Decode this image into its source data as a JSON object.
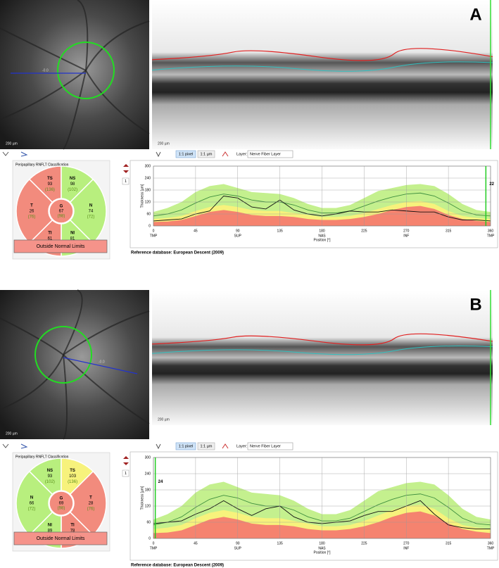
{
  "panels": [
    {
      "label": "A",
      "fundus": {
        "scale": "200 µm",
        "measure": "-0.0"
      },
      "oct": {
        "scale": "200 µm"
      },
      "toolbar": {
        "zoom_pixel": "1:1 pixel",
        "zoom_um": "1:1 µm",
        "layer_label": "Layer:",
        "layer": "Nerve Fiber Layer"
      },
      "classification": {
        "title": "Peripapillary RNFLT Classification",
        "sectors": [
          {
            "name": "TS",
            "value": 93,
            "normal": "(136)",
            "color": "#f28b7d"
          },
          {
            "name": "NS",
            "value": 98,
            "normal": "(102)",
            "color": "#b8ef7e"
          },
          {
            "name": "N",
            "value": 74,
            "normal": "(72)",
            "color": "#b8ef7e"
          },
          {
            "name": "NI",
            "value": 81,
            "normal": "(106)",
            "color": "#b8ef7e"
          },
          {
            "name": "TI",
            "value": 61,
            "normal": "(144)",
            "color": "#f28b7d"
          },
          {
            "name": "T",
            "value": 26,
            "normal": "(76)",
            "color": "#f28b7d"
          }
        ],
        "center": {
          "name": "G",
          "value": 67,
          "normal": "(98)",
          "color": "#f28b7d"
        },
        "result": "Outside Normal Limits"
      },
      "page_index": "1",
      "chart_data": {
        "type": "line",
        "ylabel": "Thickness [µm]",
        "xlabel": "Position [°]",
        "x": [
          0,
          15,
          30,
          45,
          60,
          75,
          90,
          105,
          120,
          135,
          150,
          165,
          180,
          195,
          210,
          225,
          240,
          255,
          270,
          285,
          300,
          315,
          330,
          345,
          360
        ],
        "xlim": [
          0,
          360
        ],
        "xticks": [
          0,
          45,
          90,
          135,
          180,
          225,
          270,
          315,
          360
        ],
        "x_regions": {
          "positions": [
            0,
            90,
            180,
            270,
            360
          ],
          "labels": [
            "TMP",
            "SUP",
            "NAS",
            "INF",
            "TMP"
          ]
        },
        "ylim": [
          0,
          300
        ],
        "yticks": [
          0,
          60,
          120,
          180,
          240,
          300
        ],
        "grid": true,
        "marker_x": 355,
        "marker_value": 22,
        "series": [
          {
            "kind": "area",
            "color": "#c4f08e",
            "values": [
              70,
              90,
              120,
              170,
              200,
              210,
              190,
              170,
              165,
              160,
              140,
              110,
              90,
              90,
              105,
              140,
              175,
              190,
              205,
              210,
              200,
              160,
              110,
              80,
              70
            ]
          },
          {
            "kind": "area",
            "color": "#f7f27c",
            "values": [
              35,
              40,
              50,
              75,
              95,
              105,
              95,
              80,
              75,
              75,
              65,
              55,
              45,
              45,
              50,
              65,
              85,
              105,
              120,
              125,
              110,
              75,
              50,
              40,
              35
            ]
          },
          {
            "kind": "area",
            "color": "#f5836f",
            "values": [
              20,
              22,
              30,
              50,
              70,
              80,
              70,
              55,
              50,
              50,
              45,
              35,
              30,
              30,
              35,
              45,
              60,
              80,
              95,
              100,
              85,
              55,
              35,
              25,
              20
            ]
          },
          {
            "kind": "line",
            "color": "#3f8f3f",
            "values": [
              50,
              60,
              80,
              115,
              145,
              160,
              150,
              130,
              120,
              120,
              105,
              80,
              65,
              65,
              75,
              100,
              125,
              145,
              160,
              165,
              150,
              115,
              75,
              55,
              50
            ]
          },
          {
            "kind": "line",
            "color": "#111111",
            "values": [
              25,
              30,
              35,
              60,
              75,
              150,
              140,
              95,
              85,
              130,
              80,
              60,
              50,
              60,
              75,
              70,
              70,
              80,
              75,
              70,
              70,
              45,
              30,
              30,
              25
            ]
          }
        ]
      },
      "reference": "Reference database: European Descent (2009)"
    },
    {
      "label": "B",
      "fundus": {
        "scale": "200 µm",
        "measure": "-0.0"
      },
      "oct": {
        "scale": "200 µm"
      },
      "toolbar": {
        "zoom_pixel": "1:1 pixel",
        "zoom_um": "1:1 µm",
        "layer_label": "Layer:",
        "layer": "Nerve Fiber Layer"
      },
      "classification": {
        "title": "Peripapillary RNFLT Classification",
        "sectors": [
          {
            "name": "NS",
            "value": 93,
            "normal": "(102)",
            "color": "#b8ef7e"
          },
          {
            "name": "TS",
            "value": 103,
            "normal": "(136)",
            "color": "#f7f27c"
          },
          {
            "name": "T",
            "value": 28,
            "normal": "(76)",
            "color": "#f28b7d"
          },
          {
            "name": "TI",
            "value": 78,
            "normal": "(144)",
            "color": "#f28b7d"
          },
          {
            "name": "NI",
            "value": 89,
            "normal": "(106)",
            "color": "#b8ef7e"
          },
          {
            "name": "N",
            "value": 66,
            "normal": "(72)",
            "color": "#b8ef7e"
          }
        ],
        "center": {
          "name": "G",
          "value": 69,
          "normal": "(98)",
          "color": "#f28b7d"
        },
        "result": "Outside Normal Limits"
      },
      "page_index": "1",
      "chart_data": {
        "type": "line",
        "ylabel": "Thickness [µm]",
        "xlabel": "Position [°]",
        "x": [
          0,
          15,
          30,
          45,
          60,
          75,
          90,
          105,
          120,
          135,
          150,
          165,
          180,
          195,
          210,
          225,
          240,
          255,
          270,
          285,
          300,
          315,
          330,
          345,
          360
        ],
        "xlim": [
          0,
          360
        ],
        "xticks": [
          0,
          45,
          90,
          135,
          180,
          225,
          270,
          315,
          360
        ],
        "x_regions": {
          "positions": [
            0,
            90,
            180,
            270,
            360
          ],
          "labels": [
            "TMP",
            "SUP",
            "NAS",
            "INF",
            "TMP"
          ]
        },
        "ylim": [
          0,
          300
        ],
        "yticks": [
          0,
          60,
          120,
          180,
          240,
          300
        ],
        "grid": true,
        "marker_x": 2,
        "marker_value": 24,
        "series": [
          {
            "kind": "area",
            "color": "#c4f08e",
            "values": [
              70,
              90,
              120,
              170,
              200,
              210,
              190,
              170,
              165,
              160,
              140,
              110,
              90,
              90,
              105,
              140,
              175,
              190,
              205,
              210,
              200,
              160,
              110,
              80,
              70
            ]
          },
          {
            "kind": "area",
            "color": "#f7f27c",
            "values": [
              35,
              40,
              50,
              75,
              95,
              105,
              95,
              80,
              75,
              75,
              65,
              55,
              45,
              45,
              50,
              65,
              85,
              105,
              120,
              125,
              110,
              75,
              50,
              40,
              35
            ]
          },
          {
            "kind": "area",
            "color": "#f5836f",
            "values": [
              20,
              22,
              30,
              50,
              70,
              80,
              70,
              55,
              50,
              50,
              45,
              35,
              30,
              30,
              35,
              45,
              60,
              80,
              95,
              100,
              85,
              55,
              35,
              25,
              20
            ]
          },
          {
            "kind": "line",
            "color": "#3f8f3f",
            "values": [
              50,
              60,
              80,
              115,
              145,
              160,
              150,
              130,
              120,
              120,
              105,
              80,
              65,
              65,
              75,
              100,
              125,
              145,
              160,
              165,
              150,
              115,
              75,
              55,
              50
            ]
          },
          {
            "kind": "line",
            "color": "#111111",
            "values": [
              55,
              60,
              65,
              90,
              110,
              140,
              110,
              85,
              110,
              120,
              80,
              60,
              55,
              60,
              65,
              85,
              100,
              100,
              120,
              140,
              90,
              50,
              40,
              35,
              35
            ]
          }
        ]
      },
      "reference": "Reference database: European Descent (2009)"
    }
  ]
}
